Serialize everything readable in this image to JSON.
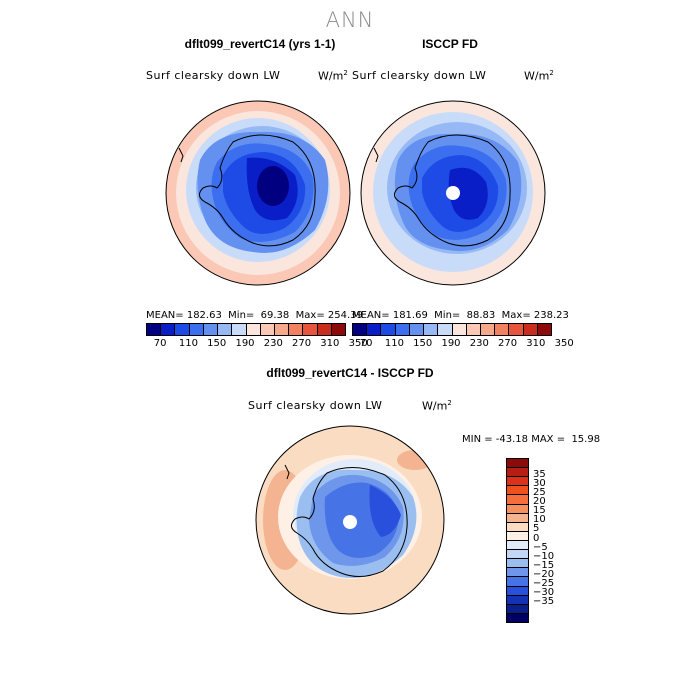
{
  "figure": {
    "title": "ANN"
  },
  "panels": [
    {
      "title": "dflt099_revertC14 (yrs 1-1)",
      "variable": "Surf clearsky down LW",
      "units_base": "W/m",
      "units_exp": "2",
      "stats": "MEAN= 182.63  Min=  69.38  Max= 254.39"
    },
    {
      "title": "ISCCP FD",
      "variable": "Surf clearsky down LW",
      "units_base": "W/m",
      "units_exp": "2",
      "stats": "MEAN= 181.69  Min=  88.83  Max= 238.23"
    }
  ],
  "diff_panel": {
    "title": "dflt099_revertC14 - ISCCP FD",
    "variable": "Surf clearsky down LW",
    "units_base": "W/m",
    "units_exp": "2",
    "stats": "MIN = -43.18 MAX =  15.98"
  },
  "colorbar_abs": {
    "colors": [
      "#000080",
      "#0a1ec8",
      "#1e4be6",
      "#3c6ef0",
      "#6491f0",
      "#96b9f5",
      "#c8dcfa",
      "#fae6dc",
      "#fac8b4",
      "#f5aa8c",
      "#f0825f",
      "#e6553c",
      "#c82d1e",
      "#8c0a0a"
    ],
    "ticks": [
      "70",
      "110",
      "150",
      "190",
      "230",
      "270",
      "310",
      "350"
    ]
  },
  "colorbar_diff": {
    "colors_top_to_bottom": [
      "#8c0a0a",
      "#b41e14",
      "#dc3219",
      "#f0501e",
      "#f56e3c",
      "#f5915f",
      "#f5b491",
      "#fadcc3",
      "#fff0e6",
      "#e1ebfa",
      "#c3d7f5",
      "#9bbef0",
      "#6e96eb",
      "#4673e6",
      "#2850dc",
      "#1432b4",
      "#0a1e8c",
      "#000064"
    ],
    "ticks": [
      "35",
      "30",
      "25",
      "20",
      "15",
      "10",
      "5",
      "0",
      "−5",
      "−10",
      "−15",
      "−20",
      "−25",
      "−30",
      "−35"
    ]
  }
}
